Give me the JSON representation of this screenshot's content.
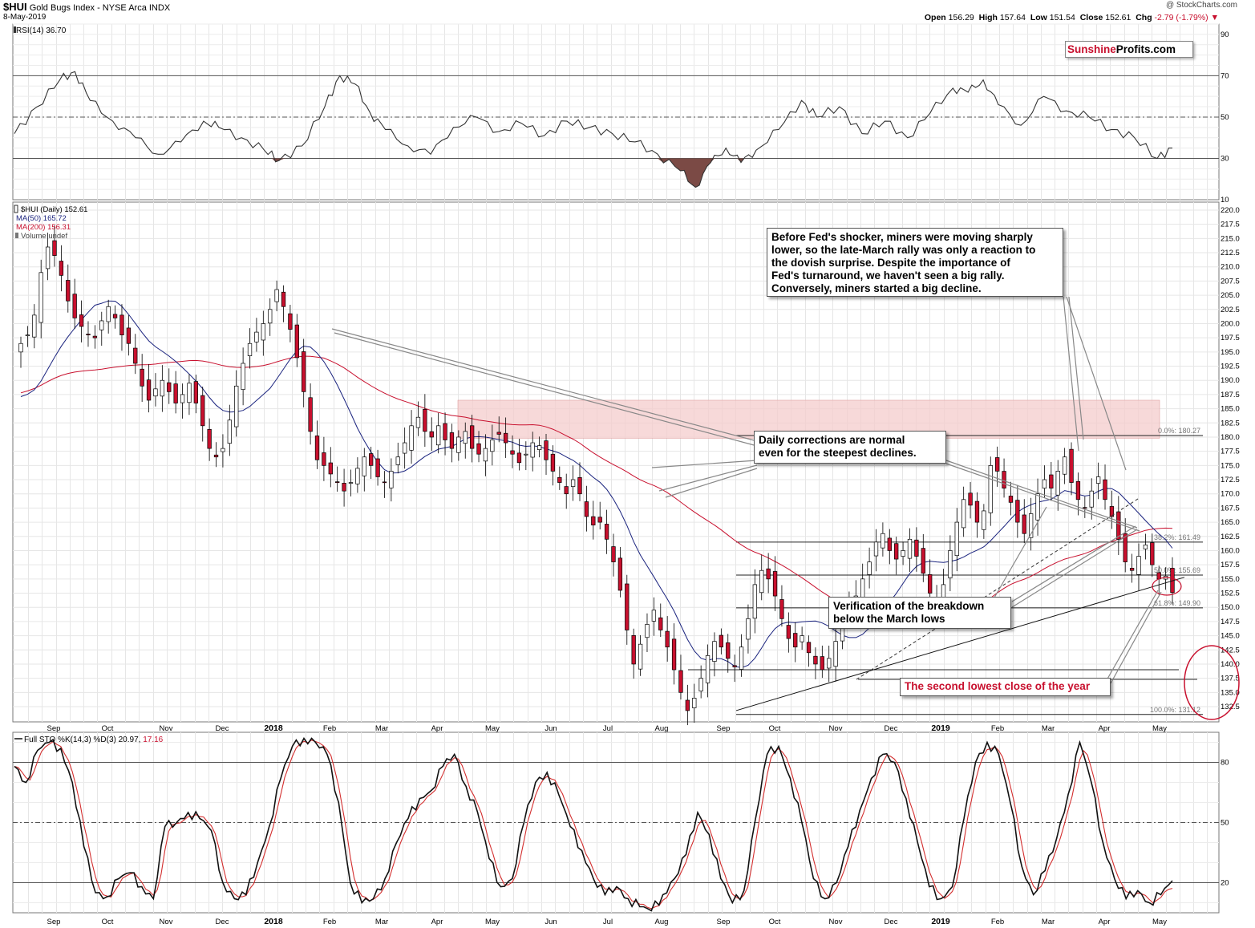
{
  "header": {
    "symbol": "$HUI",
    "name": "Gold Bugs Index - NYSE Arca INDX",
    "date": "8-May-2019",
    "credit": "@ StockCharts.com",
    "open_label": "Open",
    "open": "156.29",
    "high_label": "High",
    "high": "157.64",
    "low_label": "Low",
    "low": "151.54",
    "close_label": "Close",
    "close": "152.61",
    "chg_label": "Chg",
    "chg": "-2.79 (-1.79%)"
  },
  "brand": {
    "part1": "Sunshine",
    "part2": "Profits.com"
  },
  "colors": {
    "price_up": "#ffffff",
    "price_down": "#c8102e",
    "ma50": "#1a237e",
    "ma200": "#c8102e",
    "rsi_oversold_fill": "#7b4a45",
    "resistance_zone": "#f4cccc",
    "stoch_d": "#d32f2f"
  },
  "legend": {
    "rsi": "RSI(14) 36.70",
    "price": "$HUI (Daily) 152.61",
    "ma50": "MA(50) 165.72",
    "ma200": "MA(200) 156.31",
    "volume": "Volume undef",
    "sto_label": "Full STO %K(14,3) %D(3) 20.97,",
    "sto_d_value": " 17.16"
  },
  "x_axis": {
    "labels": [
      "Sep",
      "Oct",
      "Nov",
      "Dec",
      "2018",
      "Feb",
      "Mar",
      "Apr",
      "May",
      "Jun",
      "Jul",
      "Aug",
      "Sep",
      "Oct",
      "Nov",
      "Dec",
      "2019",
      "Feb",
      "Mar",
      "Apr",
      "May"
    ]
  },
  "annotations": {
    "fed_note": [
      "Before Fed's shocker, miners were moving sharply",
      "lower, so the late-March rally was only a reaction to",
      "the dovish surprise. Despite the importance of",
      "Fed's turnaround, we haven't seen a big rally.",
      "Conversely, miners started a big decline."
    ],
    "daily_note": [
      "Daily corrections are normal",
      "even for the steepest declines."
    ],
    "verify_note": [
      "Verification of the breakdown",
      "below the March lows"
    ],
    "second_lowest": "The second lowest close of the year"
  },
  "chart_data": [
    {
      "type": "line",
      "name": "RSI(14)",
      "ylim": [
        10,
        95
      ],
      "ticks": [
        90,
        70,
        50,
        30,
        10
      ],
      "reference_lines": [
        70,
        50,
        30
      ],
      "last_value": 36.7,
      "shape_points": [
        [
          0,
          42
        ],
        [
          3,
          55
        ],
        [
          6,
          68
        ],
        [
          8,
          72
        ],
        [
          10,
          58
        ],
        [
          13,
          48
        ],
        [
          16,
          40
        ],
        [
          19,
          32
        ],
        [
          22,
          38
        ],
        [
          25,
          48
        ],
        [
          27,
          45
        ],
        [
          30,
          40
        ],
        [
          33,
          34
        ],
        [
          35,
          29
        ],
        [
          38,
          36
        ],
        [
          41,
          55
        ],
        [
          43,
          70
        ],
        [
          45,
          66
        ],
        [
          47,
          52
        ],
        [
          49,
          44
        ],
        [
          52,
          36
        ],
        [
          55,
          32
        ],
        [
          58,
          45
        ],
        [
          61,
          50
        ],
        [
          64,
          43
        ],
        [
          67,
          47
        ],
        [
          70,
          41
        ],
        [
          73,
          48
        ],
        [
          76,
          45
        ],
        [
          79,
          42
        ],
        [
          82,
          38
        ],
        [
          85,
          32
        ],
        [
          88,
          24
        ],
        [
          90,
          16
        ],
        [
          92,
          28
        ],
        [
          94,
          35
        ],
        [
          96,
          28
        ],
        [
          98,
          34
        ],
        [
          101,
          44
        ],
        [
          104,
          58
        ],
        [
          106,
          50
        ],
        [
          109,
          55
        ],
        [
          112,
          42
        ],
        [
          115,
          48
        ],
        [
          118,
          40
        ],
        [
          121,
          52
        ],
        [
          124,
          64
        ],
        [
          126,
          62
        ],
        [
          128,
          68
        ],
        [
          130,
          56
        ],
        [
          133,
          46
        ],
        [
          136,
          60
        ],
        [
          139,
          53
        ],
        [
          142,
          50
        ],
        [
          145,
          44
        ],
        [
          148,
          40
        ],
        [
          151,
          30
        ],
        [
          153,
          35
        ]
      ]
    },
    {
      "type": "candlestick",
      "name": "$HUI (Daily)",
      "last_close": 152.61,
      "ylim": [
        131,
        221
      ],
      "ticks": [
        220.0,
        217.5,
        215.0,
        212.5,
        210.0,
        207.5,
        205.0,
        202.5,
        200.0,
        197.5,
        195.0,
        192.5,
        190.0,
        187.5,
        185.0,
        182.5,
        180.0,
        177.5,
        175.0,
        172.5,
        170.0,
        167.5,
        165.0,
        162.5,
        160.0,
        157.5,
        155.0,
        152.5,
        150.0,
        147.5,
        145.0,
        142.5,
        140.0,
        137.5,
        135.0,
        132.5
      ],
      "fibonacci": [
        {
          "label": "0.0%: 180.27",
          "value": 180.27
        },
        {
          "label": "38.2%: 161.49",
          "value": 161.49
        },
        {
          "label": "50.0%: 155.69",
          "value": 155.69
        },
        {
          "label": "61.8%: 149.90",
          "value": 149.9
        },
        {
          "label": "100.0%: 131.12",
          "value": 131.12
        }
      ],
      "support_lines": [
        139.0,
        137.3
      ],
      "resistance_zone": [
        179.8,
        186.5
      ],
      "closes": [
        196.5,
        198.0,
        201.5,
        209.0,
        213.5,
        212.0,
        208.5,
        204.0,
        201.0,
        199.5,
        198.0,
        197.5,
        200.5,
        203.0,
        201.0,
        198.0,
        196.5,
        193.0,
        189.0,
        186.5,
        188.5,
        190.0,
        188.0,
        186.0,
        187.5,
        189.5,
        186.0,
        182.0,
        178.0,
        176.5,
        178.0,
        183.0,
        189.0,
        193.0,
        196.5,
        198.5,
        200.0,
        202.5,
        206.0,
        203.0,
        199.0,
        194.0,
        188.0,
        181.0,
        176.0,
        175.0,
        173.5,
        172.0,
        170.5,
        172.0,
        174.5,
        176.5,
        175.0,
        173.0,
        172.0,
        174.0,
        176.5,
        179.0,
        182.0,
        183.5,
        181.0,
        180.0,
        182.0,
        179.5,
        178.0,
        180.0,
        181.0,
        178.0,
        177.0,
        178.0,
        179.5,
        180.5,
        179.0,
        177.0,
        175.5,
        177.0,
        179.0,
        178.5,
        176.0,
        174.0,
        172.0,
        170.0,
        172.5,
        170.0,
        166.0,
        164.5,
        165.0,
        162.0,
        158.0,
        153.0,
        146.0,
        140.0,
        143.5,
        147.0,
        149.5,
        146.0,
        143.0,
        139.0,
        135.0,
        131.8,
        134.0,
        137.5,
        141.5,
        144.0,
        143.0,
        141.0,
        139.5,
        143.0,
        148.0,
        154.0,
        156.5,
        155.0,
        152.0,
        148.0,
        144.5,
        143.0,
        145.0,
        142.0,
        140.0,
        139.0,
        141.0,
        144.0,
        147.5,
        150.0,
        152.0,
        155.0,
        158.0,
        161.5,
        163.0,
        160.0,
        158.5,
        160.0,
        162.0,
        159.0,
        156.0,
        152.5,
        150.5,
        154.0,
        160.0,
        165.0,
        169.0,
        168.0,
        165.0,
        167.0,
        175.0,
        174.0,
        171.0,
        168.5,
        165.0,
        163.0,
        166.5,
        170.0,
        172.5,
        171.0,
        174.0,
        176.5,
        172.0,
        169.0,
        167.5,
        170.5,
        173.0,
        169.0,
        166.0,
        162.0,
        158.0,
        156.5,
        159.0,
        161.0,
        157.5,
        155.0,
        155.5,
        152.6
      ]
    },
    {
      "type": "line",
      "name": "Full STO %K(14,3) %D(3)",
      "ylim": [
        5,
        95
      ],
      "ticks": [
        80,
        50,
        20
      ],
      "reference_lines": [
        80,
        50,
        20
      ],
      "last_k": 20.97,
      "last_d": 17.16,
      "k_points": [
        [
          0,
          78
        ],
        [
          2,
          70
        ],
        [
          4,
          86
        ],
        [
          6,
          90
        ],
        [
          8,
          87
        ],
        [
          10,
          70
        ],
        [
          12,
          38
        ],
        [
          14,
          15
        ],
        [
          16,
          13
        ],
        [
          18,
          22
        ],
        [
          20,
          25
        ],
        [
          22,
          18
        ],
        [
          24,
          12
        ],
        [
          26,
          48
        ],
        [
          28,
          50
        ],
        [
          30,
          55
        ],
        [
          32,
          52
        ],
        [
          34,
          46
        ],
        [
          36,
          20
        ],
        [
          38,
          12
        ],
        [
          40,
          14
        ],
        [
          42,
          30
        ],
        [
          44,
          48
        ],
        [
          46,
          72
        ],
        [
          48,
          88
        ],
        [
          50,
          92
        ],
        [
          52,
          90
        ],
        [
          54,
          84
        ],
        [
          56,
          60
        ],
        [
          58,
          20
        ],
        [
          60,
          10
        ],
        [
          62,
          12
        ],
        [
          64,
          22
        ],
        [
          66,
          40
        ],
        [
          68,
          52
        ],
        [
          70,
          62
        ],
        [
          72,
          66
        ],
        [
          74,
          78
        ],
        [
          76,
          84
        ],
        [
          78,
          68
        ],
        [
          80,
          55
        ],
        [
          82,
          32
        ],
        [
          84,
          18
        ],
        [
          86,
          22
        ],
        [
          88,
          50
        ],
        [
          90,
          70
        ],
        [
          92,
          75
        ],
        [
          94,
          64
        ],
        [
          96,
          48
        ],
        [
          98,
          36
        ],
        [
          100,
          22
        ],
        [
          102,
          14
        ],
        [
          104,
          18
        ],
        [
          106,
          12
        ],
        [
          108,
          8
        ],
        [
          110,
          6
        ],
        [
          112,
          14
        ],
        [
          114,
          22
        ],
        [
          116,
          34
        ],
        [
          118,
          55
        ],
        [
          120,
          44
        ],
        [
          122,
          22
        ],
        [
          124,
          10
        ],
        [
          126,
          16
        ],
        [
          128,
          52
        ],
        [
          130,
          84
        ],
        [
          132,
          88
        ],
        [
          134,
          72
        ],
        [
          136,
          50
        ],
        [
          138,
          22
        ],
        [
          140,
          12
        ],
        [
          142,
          20
        ],
        [
          144,
          38
        ],
        [
          146,
          56
        ],
        [
          148,
          72
        ],
        [
          150,
          84
        ],
        [
          152,
          80
        ],
        [
          154,
          62
        ],
        [
          156,
          40
        ],
        [
          158,
          18
        ],
        [
          160,
          12
        ],
        [
          162,
          18
        ],
        [
          164,
          52
        ],
        [
          166,
          80
        ],
        [
          168,
          90
        ],
        [
          170,
          84
        ],
        [
          172,
          60
        ],
        [
          174,
          28
        ],
        [
          176,
          14
        ],
        [
          178,
          26
        ],
        [
          180,
          42
        ],
        [
          182,
          64
        ],
        [
          184,
          90
        ],
        [
          186,
          70
        ],
        [
          188,
          40
        ],
        [
          190,
          22
        ],
        [
          192,
          12
        ],
        [
          194,
          16
        ],
        [
          196,
          10
        ],
        [
          198,
          14
        ],
        [
          200,
          21
        ]
      ]
    }
  ]
}
